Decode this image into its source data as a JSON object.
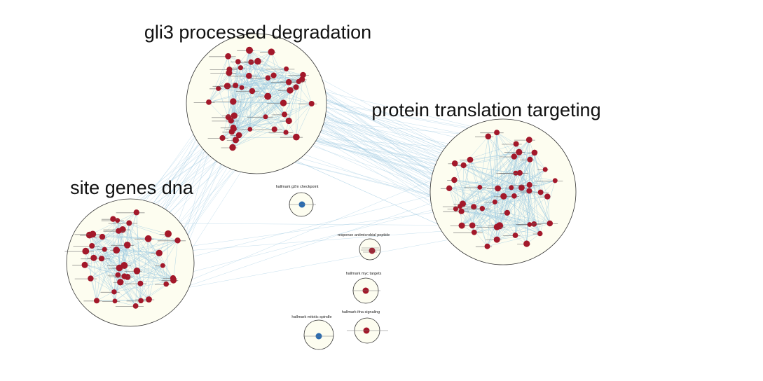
{
  "network": {
    "colors": {
      "cluster_fill": "#fdfdf0",
      "cluster_stroke": "#333333",
      "edge": "#9ecae1",
      "node_red": "#a3182a",
      "node_blue": "#2b6cb0"
    },
    "clusters": [
      {
        "id": "gli3",
        "title": "gli3 processed degradation",
        "node_color": "red"
      },
      {
        "id": "protein",
        "title": "protein translation targeting",
        "node_color": "red"
      },
      {
        "id": "site",
        "title": "site genes dna",
        "node_color": "red"
      },
      {
        "id": "g2m",
        "title": "hallmark g2m checkpoint",
        "node_color": "blue"
      },
      {
        "id": "antimicrobial",
        "title": "response antimicrobial peptide",
        "node_color": "red"
      },
      {
        "id": "myc",
        "title": "hallmark myc targets",
        "node_color": "red"
      },
      {
        "id": "ifna",
        "title": "hallmark ifna signaling",
        "node_color": "red"
      },
      {
        "id": "mitotic",
        "title": "hallmark mitotic spindle",
        "node_color": "blue"
      }
    ]
  }
}
